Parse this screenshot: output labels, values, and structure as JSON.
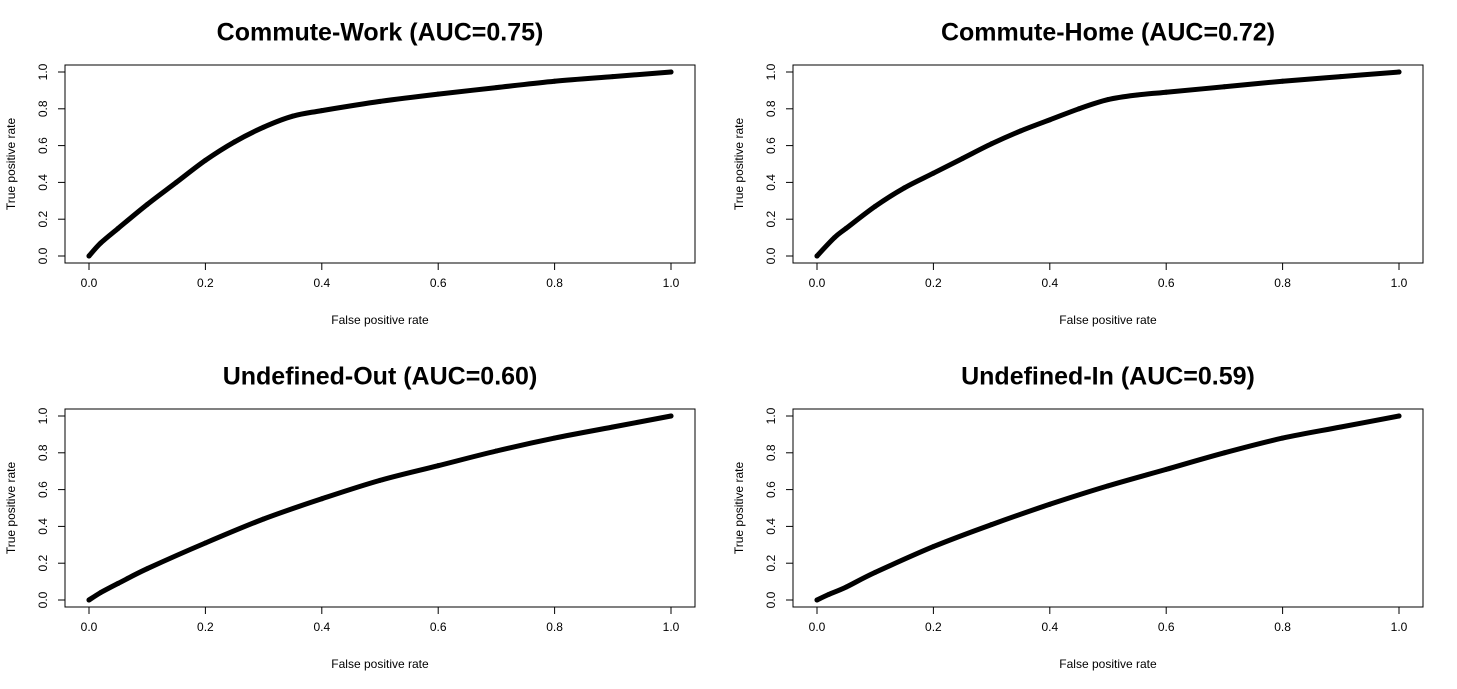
{
  "chart_data": [
    {
      "type": "line",
      "title": "Commute-Work (AUC=0.75)",
      "xlabel": "False positive rate",
      "ylabel": "True positive rate",
      "xlim": [
        0,
        1
      ],
      "ylim": [
        0,
        1
      ],
      "xticks": [
        "0.0",
        "0.2",
        "0.4",
        "0.6",
        "0.8",
        "1.0"
      ],
      "yticks": [
        "0.0",
        "0.2",
        "0.4",
        "0.6",
        "0.8",
        "1.0"
      ],
      "grid": false,
      "x": [
        0,
        0.02,
        0.05,
        0.1,
        0.15,
        0.2,
        0.25,
        0.3,
        0.35,
        0.4,
        0.5,
        0.6,
        0.7,
        0.8,
        0.9,
        1.0
      ],
      "y": [
        0,
        0.07,
        0.15,
        0.28,
        0.4,
        0.52,
        0.62,
        0.7,
        0.76,
        0.79,
        0.84,
        0.88,
        0.915,
        0.95,
        0.975,
        1.0
      ]
    },
    {
      "type": "line",
      "title": "Commute-Home (AUC=0.72)",
      "xlabel": "False positive rate",
      "ylabel": "True positive rate",
      "xlim": [
        0,
        1
      ],
      "ylim": [
        0,
        1
      ],
      "xticks": [
        "0.0",
        "0.2",
        "0.4",
        "0.6",
        "0.8",
        "1.0"
      ],
      "yticks": [
        "0.0",
        "0.2",
        "0.4",
        "0.6",
        "0.8",
        "1.0"
      ],
      "grid": false,
      "x": [
        0,
        0.03,
        0.05,
        0.1,
        0.15,
        0.2,
        0.25,
        0.3,
        0.35,
        0.4,
        0.45,
        0.5,
        0.55,
        0.6,
        0.7,
        0.8,
        0.9,
        1.0
      ],
      "y": [
        0,
        0.1,
        0.15,
        0.27,
        0.37,
        0.45,
        0.53,
        0.61,
        0.68,
        0.74,
        0.8,
        0.85,
        0.875,
        0.89,
        0.92,
        0.95,
        0.975,
        1.0
      ]
    },
    {
      "type": "line",
      "title": "Undefined-Out (AUC=0.60)",
      "xlabel": "False positive rate",
      "ylabel": "True positive rate",
      "xlim": [
        0,
        1
      ],
      "ylim": [
        0,
        1
      ],
      "xticks": [
        "0.0",
        "0.2",
        "0.4",
        "0.6",
        "0.8",
        "1.0"
      ],
      "yticks": [
        "0.0",
        "0.2",
        "0.4",
        "0.6",
        "0.8",
        "1.0"
      ],
      "grid": false,
      "x": [
        0,
        0.02,
        0.05,
        0.1,
        0.2,
        0.3,
        0.4,
        0.5,
        0.6,
        0.7,
        0.8,
        0.9,
        1.0
      ],
      "y": [
        0,
        0.04,
        0.09,
        0.17,
        0.31,
        0.44,
        0.55,
        0.65,
        0.73,
        0.81,
        0.88,
        0.94,
        1.0
      ]
    },
    {
      "type": "line",
      "title": "Undefined-In (AUC=0.59)",
      "xlabel": "False positive rate",
      "ylabel": "True positive rate",
      "xlim": [
        0,
        1
      ],
      "ylim": [
        0,
        1
      ],
      "xticks": [
        "0.0",
        "0.2",
        "0.4",
        "0.6",
        "0.8",
        "1.0"
      ],
      "yticks": [
        "0.0",
        "0.2",
        "0.4",
        "0.6",
        "0.8",
        "1.0"
      ],
      "grid": false,
      "x": [
        0,
        0.02,
        0.05,
        0.1,
        0.2,
        0.3,
        0.4,
        0.5,
        0.6,
        0.7,
        0.8,
        0.9,
        1.0
      ],
      "y": [
        0,
        0.03,
        0.07,
        0.15,
        0.29,
        0.41,
        0.52,
        0.62,
        0.71,
        0.8,
        0.88,
        0.94,
        1.0
      ]
    }
  ]
}
